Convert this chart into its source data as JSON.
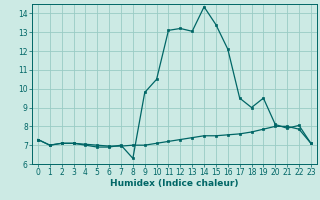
{
  "xlabel": "Humidex (Indice chaleur)",
  "bg_color": "#cceae4",
  "grid_color": "#99ccc4",
  "line_color": "#006666",
  "xlim": [
    -0.5,
    23.5
  ],
  "ylim": [
    6.0,
    14.5
  ],
  "yticks": [
    6,
    7,
    8,
    9,
    10,
    11,
    12,
    13,
    14
  ],
  "xticks": [
    0,
    1,
    2,
    3,
    4,
    5,
    6,
    7,
    8,
    9,
    10,
    11,
    12,
    13,
    14,
    15,
    16,
    17,
    18,
    19,
    20,
    21,
    22,
    23
  ],
  "line1_x": [
    0,
    1,
    2,
    3,
    4,
    5,
    6,
    7,
    8,
    9,
    10,
    11,
    12,
    13,
    14,
    15,
    16,
    17,
    18,
    19,
    20,
    21,
    22,
    23
  ],
  "line1_y": [
    7.3,
    7.0,
    7.1,
    7.1,
    7.0,
    6.9,
    6.9,
    7.0,
    6.3,
    9.8,
    10.5,
    13.1,
    13.2,
    13.05,
    14.35,
    13.4,
    12.1,
    9.5,
    9.0,
    9.5,
    8.1,
    7.9,
    8.05,
    7.1
  ],
  "line2_x": [
    0,
    1,
    2,
    3,
    4,
    5,
    6,
    7,
    8,
    9,
    10,
    11,
    12,
    13,
    14,
    15,
    16,
    17,
    18,
    19,
    20,
    21,
    22,
    23
  ],
  "line2_y": [
    7.3,
    7.0,
    7.1,
    7.1,
    7.05,
    7.0,
    6.95,
    6.95,
    7.0,
    7.0,
    7.1,
    7.2,
    7.3,
    7.4,
    7.5,
    7.5,
    7.55,
    7.6,
    7.7,
    7.85,
    8.0,
    8.0,
    7.85,
    7.1
  ],
  "tick_fontsize": 5.5,
  "xlabel_fontsize": 6.5
}
